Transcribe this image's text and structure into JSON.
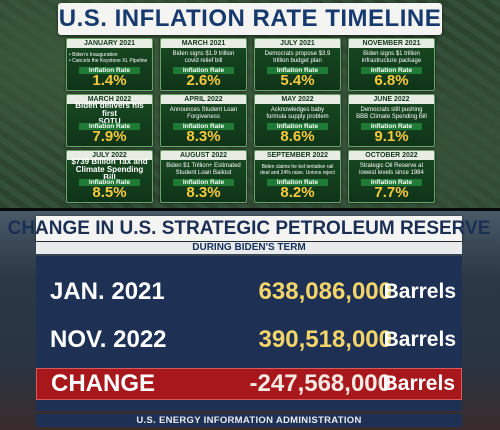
{
  "timeline": {
    "title": "U.S. INFLATION RATE TIMELINE",
    "rate_label": "Inflation Rate",
    "cards": [
      {
        "date": "JANUARY 2021",
        "desc": [
          "• Biden's Inauguration",
          "• Cancels the Keystone XL Pipeline"
        ],
        "rate": "1.4%"
      },
      {
        "date": "MARCH 2021",
        "desc": [
          "Biden signs $1.9 trillion",
          "covid relief bill"
        ],
        "rate": "2.6%"
      },
      {
        "date": "JULY 2021",
        "desc": [
          "Democrats propose $3.9",
          "trillion budget plan"
        ],
        "rate": "5.4%"
      },
      {
        "date": "NOVEMBER 2021",
        "desc": [
          "Biden signs $1 trillion",
          "infrastructure package"
        ],
        "rate": "6.8%"
      },
      {
        "date": "MARCH 2022",
        "desc": [
          "Biden delivers his first",
          "SOTU"
        ],
        "rate": "7.9%"
      },
      {
        "date": "APRIL 2022",
        "desc": [
          "Announces Student Loan",
          "Forgiveness"
        ],
        "rate": "8.3%"
      },
      {
        "date": "MAY 2022",
        "desc": [
          "Acknowledges baby",
          "formula supply problem"
        ],
        "rate": "8.6%"
      },
      {
        "date": "JUNE 2022",
        "desc": [
          "Democrats still pushing",
          "BBB Climate Spending Bill"
        ],
        "rate": "9.1%"
      },
      {
        "date": "JULY 2022",
        "desc": [
          "$739 Billion Tax and",
          "Climate Spending Bill"
        ],
        "rate": "8.5%"
      },
      {
        "date": "AUGUST 2022",
        "desc": [
          "Biden $1 Trillion+ Estimated",
          "Student Loan Bailout"
        ],
        "rate": "8.3%"
      },
      {
        "date": "SEPTEMBER 2022",
        "desc": [
          "Biden claims he led tentative rail",
          "deal and 24% raise. Unions reject"
        ],
        "rate": "8.2%"
      },
      {
        "date": "OCTOBER 2022",
        "desc": [
          "Strategic Oil Reserve at",
          "lowest levels since 1984"
        ],
        "rate": "7.7%"
      }
    ]
  },
  "reserve": {
    "title": "CHANGE IN U.S. STRATEGIC PETROLEUM RESERVE",
    "subtitle": "DURING BIDEN'S TERM",
    "rows": [
      {
        "label": "JAN. 2021",
        "value": "638,086,000",
        "unit": "Barrels"
      },
      {
        "label": "NOV. 2022",
        "value": "390,518,000",
        "unit": "Barrels"
      },
      {
        "label": "CHANGE",
        "value": "-247,568,000",
        "unit": "Barrels"
      }
    ],
    "source": "U.S. ENERGY INFORMATION ADMINISTRATION"
  }
}
